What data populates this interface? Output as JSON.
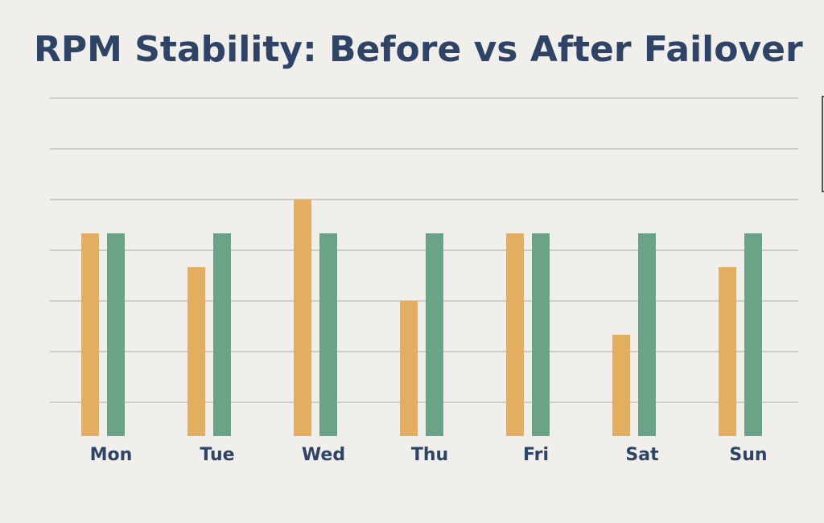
{
  "chart_data": {
    "type": "bar",
    "title": "RPM Stability: Before vs After Failover",
    "categories": [
      "Mon",
      "Tue",
      "Wed",
      "Thu",
      "Fri",
      "Sat",
      "Sun"
    ],
    "series": [
      {
        "color": "#e3ae62",
        "values": [
          6,
          5,
          7,
          4,
          6,
          3,
          5
        ]
      },
      {
        "color": "#6aa385",
        "values": [
          6,
          6,
          6,
          6,
          6,
          6,
          6
        ]
      }
    ],
    "ylim": [
      0,
      10
    ],
    "yticks": [
      1,
      2.5,
      4,
      5.5,
      7,
      8.5,
      10
    ],
    "grid": true
  }
}
